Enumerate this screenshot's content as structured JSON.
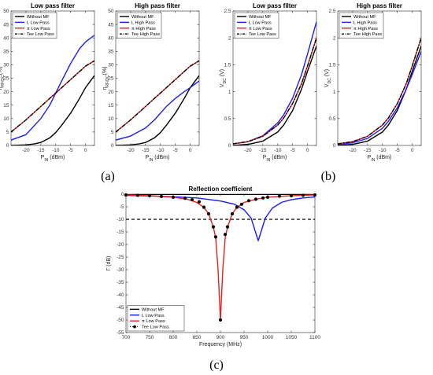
{
  "captions": [
    "(a)",
    "(b)",
    "(c)"
  ],
  "chart_data": [
    {
      "type": "line",
      "title": "Low pass filter",
      "xlabel": "P_IN (dBm)",
      "ylabel": "η_RF/DC(%)",
      "xlim": [
        -25,
        3
      ],
      "ylim": [
        0,
        50
      ],
      "xticks": [
        -20,
        -15,
        -10,
        -5,
        0
      ],
      "yticks": [
        0,
        5,
        10,
        15,
        20,
        25,
        30,
        35,
        40,
        45,
        50
      ],
      "legend_position": "top-left",
      "series": [
        {
          "name": "Without MF",
          "color": "#000000",
          "dash": "solid",
          "x": [
            -25,
            -20,
            -17,
            -15,
            -12,
            -10,
            -8,
            -5,
            -2,
            0,
            3
          ],
          "y": [
            0,
            0.2,
            0.6,
            1.1,
            2.8,
            4.8,
            7.5,
            12,
            17.5,
            21.5,
            26
          ]
        },
        {
          "name": "L Low Pass",
          "color": "#1a1aff",
          "dash": "solid",
          "x": [
            -25,
            -20,
            -15,
            -12,
            -10,
            -8,
            -5,
            -2,
            0,
            3
          ],
          "y": [
            2,
            4,
            10,
            15,
            19.5,
            24,
            30.5,
            36,
            38.5,
            41
          ]
        },
        {
          "name": "π Low Pass",
          "color": "#e8201f",
          "dash": "solid",
          "x": [
            -25,
            -20,
            -15,
            -10,
            -8,
            -5,
            -2,
            0,
            3
          ],
          "y": [
            5,
            9.5,
            14.5,
            19.5,
            21.5,
            24.5,
            27.5,
            29.5,
            31.5
          ]
        },
        {
          "name": "Tee Low Pass",
          "color": "#000000",
          "dash": "dashdot",
          "x": [
            -25,
            -20,
            -15,
            -10,
            -8,
            -5,
            -2,
            0,
            3
          ],
          "y": [
            5,
            9.5,
            14.5,
            19.5,
            21.5,
            24.5,
            27.5,
            29.5,
            31.5
          ]
        }
      ]
    },
    {
      "type": "line",
      "title": "High pass filter",
      "xlabel": "P_IN (dBm)",
      "ylabel": "η_RF/DC(%)",
      "xlim": [
        -25,
        3
      ],
      "ylim": [
        0,
        50
      ],
      "xticks": [
        -20,
        -15,
        -10,
        -5,
        0
      ],
      "yticks": [
        0,
        5,
        10,
        15,
        20,
        25,
        30,
        35,
        40,
        45,
        50
      ],
      "legend_position": "top-left",
      "series": [
        {
          "name": "Without MF",
          "color": "#000000",
          "dash": "solid",
          "x": [
            -25,
            -20,
            -17,
            -15,
            -12,
            -10,
            -8,
            -5,
            -2,
            0,
            3
          ],
          "y": [
            0,
            0.2,
            0.6,
            1.1,
            2.8,
            4.8,
            7.5,
            12,
            17.5,
            21.5,
            26
          ]
        },
        {
          "name": "L High Pass",
          "color": "#1a1aff",
          "dash": "solid",
          "x": [
            -25,
            -20,
            -15,
            -12,
            -10,
            -8,
            -5,
            -2,
            0,
            3
          ],
          "y": [
            2,
            3.5,
            6.5,
            9.5,
            12,
            14.5,
            17.5,
            20,
            21.5,
            24
          ]
        },
        {
          "name": "π High Pass",
          "color": "#e8201f",
          "dash": "solid",
          "x": [
            -25,
            -20,
            -15,
            -10,
            -8,
            -5,
            -2,
            0,
            3
          ],
          "y": [
            5,
            9.5,
            14.5,
            19.5,
            21.5,
            24.5,
            27.5,
            29.5,
            31.5
          ]
        },
        {
          "name": "Tee High Pass",
          "color": "#000000",
          "dash": "dashdot",
          "x": [
            -25,
            -20,
            -15,
            -10,
            -8,
            -5,
            -2,
            0,
            3
          ],
          "y": [
            5,
            9.5,
            14.5,
            19.5,
            21.5,
            24.5,
            27.5,
            29.5,
            31.5
          ]
        }
      ]
    },
    {
      "type": "line",
      "title": "Low pass filter",
      "xlabel": "P_IN (dBm)",
      "ylabel": "V_DC (V)",
      "xlim": [
        -25,
        3
      ],
      "ylim": [
        0,
        2.5
      ],
      "xticks": [
        -20,
        -15,
        -10,
        -5,
        0
      ],
      "yticks": [
        0,
        0.5,
        1,
        1.5,
        2,
        2.5
      ],
      "legend_position": "top-left",
      "series": [
        {
          "name": "Without MF",
          "color": "#000000",
          "dash": "solid",
          "x": [
            -25,
            -20,
            -15,
            -10,
            -8,
            -5,
            -2,
            0,
            3
          ],
          "y": [
            0,
            0.02,
            0.08,
            0.25,
            0.38,
            0.65,
            1.05,
            1.38,
            1.85
          ]
        },
        {
          "name": "L Low Pass",
          "color": "#1a1aff",
          "dash": "solid",
          "x": [
            -25,
            -20,
            -15,
            -10,
            -8,
            -5,
            -2,
            0,
            3
          ],
          "y": [
            0.03,
            0.07,
            0.18,
            0.42,
            0.57,
            0.88,
            1.32,
            1.7,
            2.3
          ]
        },
        {
          "name": "π Low Pass",
          "color": "#e8201f",
          "dash": "solid",
          "x": [
            -25,
            -20,
            -15,
            -10,
            -8,
            -5,
            -2,
            0,
            3
          ],
          "y": [
            0.03,
            0.07,
            0.17,
            0.38,
            0.51,
            0.78,
            1.15,
            1.48,
            2.0
          ]
        },
        {
          "name": "Tee Low Pass",
          "color": "#000000",
          "dash": "dashdot",
          "x": [
            -25,
            -20,
            -15,
            -10,
            -8,
            -5,
            -2,
            0,
            3
          ],
          "y": [
            0.03,
            0.07,
            0.17,
            0.38,
            0.51,
            0.78,
            1.15,
            1.48,
            2.0
          ]
        }
      ]
    },
    {
      "type": "line",
      "title": "High pass filter",
      "xlabel": "P_IN (dBm)",
      "ylabel": "V_DC (V)",
      "xlim": [
        -25,
        3
      ],
      "ylim": [
        0,
        2.5
      ],
      "xticks": [
        -20,
        -15,
        -10,
        -5,
        0
      ],
      "yticks": [
        0,
        0.5,
        1,
        1.5,
        2,
        2.5
      ],
      "legend_position": "top-left",
      "series": [
        {
          "name": "Without MF",
          "color": "#000000",
          "dash": "solid",
          "x": [
            -25,
            -20,
            -15,
            -10,
            -8,
            -5,
            -2,
            0,
            3
          ],
          "y": [
            0,
            0.02,
            0.08,
            0.25,
            0.38,
            0.65,
            1.05,
            1.38,
            1.85
          ]
        },
        {
          "name": "L High Pass",
          "color": "#1a1aff",
          "dash": "solid",
          "x": [
            -25,
            -20,
            -15,
            -10,
            -8,
            -5,
            -2,
            0,
            3
          ],
          "y": [
            0.02,
            0.05,
            0.13,
            0.32,
            0.45,
            0.7,
            1.05,
            1.32,
            1.75
          ]
        },
        {
          "name": "π High Pass",
          "color": "#e8201f",
          "dash": "solid",
          "x": [
            -25,
            -20,
            -15,
            -10,
            -8,
            -5,
            -2,
            0,
            3
          ],
          "y": [
            0.03,
            0.07,
            0.17,
            0.38,
            0.51,
            0.78,
            1.15,
            1.48,
            2.0
          ]
        },
        {
          "name": "Tee High Pass",
          "color": "#000000",
          "dash": "dashdot",
          "x": [
            -25,
            -20,
            -15,
            -10,
            -8,
            -5,
            -2,
            0,
            3
          ],
          "y": [
            0.03,
            0.07,
            0.17,
            0.38,
            0.51,
            0.78,
            1.15,
            1.48,
            2.0
          ]
        }
      ]
    },
    {
      "type": "line",
      "title": "Reflection coefficient",
      "xlabel": "Frequency (MHz)",
      "ylabel": "Γ (dB)",
      "xlim": [
        700,
        1100
      ],
      "ylim": [
        -55,
        0
      ],
      "xticks": [
        700,
        750,
        800,
        850,
        900,
        950,
        1000,
        1050,
        1100
      ],
      "yticks": [
        0,
        -5,
        -10,
        -15,
        -20,
        -25,
        -30,
        -35,
        -40,
        -45,
        -50,
        -55
      ],
      "legend_position": "bottom-left",
      "reference_line_y": -10,
      "series": [
        {
          "name": "Without MF",
          "color": "#000000",
          "dash": "solid",
          "x": [
            700,
            800,
            900,
            1000,
            1100
          ],
          "y": [
            -0.1,
            -0.1,
            -0.1,
            -0.1,
            -0.1
          ]
        },
        {
          "name": "L Low Pass",
          "color": "#1a1aff",
          "dash": "solid",
          "x": [
            700,
            750,
            800,
            850,
            900,
            930,
            950,
            965,
            980,
            995,
            1010,
            1030,
            1050,
            1075,
            1100
          ],
          "y": [
            -0.5,
            -0.7,
            -1.0,
            -1.5,
            -2.7,
            -4.0,
            -6.2,
            -9.5,
            -18.5,
            -9.5,
            -5.5,
            -3.2,
            -2.2,
            -1.5,
            -1.1
          ]
        },
        {
          "name": "π Low Pass",
          "color": "#e8201f",
          "dash": "solid",
          "x": [
            700,
            750,
            800,
            830,
            850,
            865,
            875,
            885,
            890,
            895,
            900,
            905,
            910,
            915,
            925,
            935,
            950,
            975,
            1000,
            1050,
            1100
          ],
          "y": [
            -0.3,
            -0.6,
            -1.2,
            -2.0,
            -3.3,
            -5.2,
            -7.8,
            -13.0,
            -17.5,
            -30,
            -50,
            -30,
            -17.5,
            -13.0,
            -7.8,
            -5.2,
            -3.3,
            -2.0,
            -1.2,
            -0.6,
            -0.3
          ]
        },
        {
          "name": "Tee Low Pass",
          "color": "#000000",
          "dash": "dots",
          "x": [
            700,
            725,
            750,
            775,
            800,
            825,
            840,
            855,
            865,
            875,
            885,
            890,
            900,
            910,
            915,
            925,
            935,
            945,
            960,
            975,
            990,
            1000,
            1025,
            1050,
            1075,
            1100
          ],
          "y": [
            -0.3,
            -0.45,
            -0.6,
            -0.9,
            -1.2,
            -1.6,
            -2.2,
            -3.0,
            -5.2,
            -7.8,
            -13.0,
            -17.0,
            -50,
            -16.0,
            -13.0,
            -7.8,
            -5.2,
            -4.0,
            -2.6,
            -2.0,
            -1.5,
            -1.2,
            -0.8,
            -0.6,
            -0.45,
            -0.3
          ]
        }
      ]
    }
  ]
}
